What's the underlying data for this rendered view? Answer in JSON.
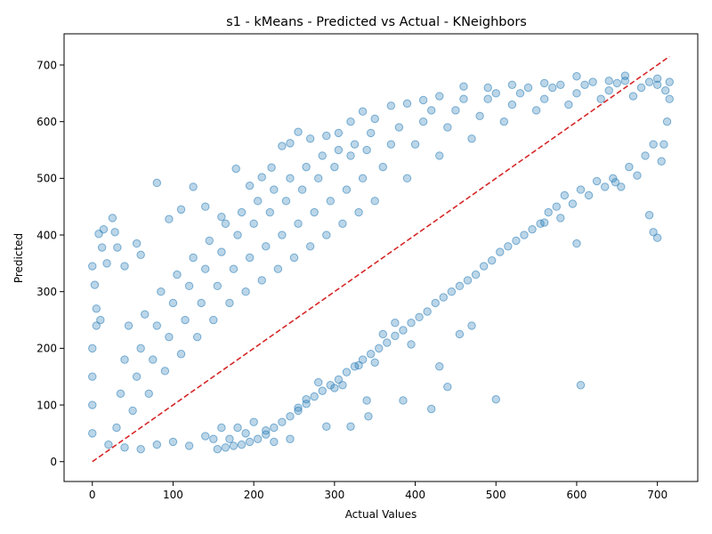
{
  "chart_data": {
    "type": "scatter",
    "title": "s1 - kMeans - Predicted vs Actual - KNeighbors",
    "xlabel": "Actual Values",
    "ylabel": "Predicted",
    "xlim": [
      -35,
      750
    ],
    "ylim": [
      -35,
      755
    ],
    "xticks": [
      0,
      100,
      200,
      300,
      400,
      500,
      600,
      700
    ],
    "yticks": [
      0,
      100,
      200,
      300,
      400,
      500,
      600,
      700
    ],
    "grid": false,
    "legend": "none",
    "point_color": "#1f77b4",
    "point_alpha": 0.3,
    "reference_line": {
      "style": "dashed",
      "color": "#d62728",
      "x": [
        0,
        715
      ],
      "y": [
        0,
        715
      ]
    },
    "series": [
      {
        "points": [
          [
            0,
            345
          ],
          [
            3,
            312
          ],
          [
            5,
            270
          ],
          [
            8,
            402
          ],
          [
            12,
            378
          ],
          [
            14,
            410
          ],
          [
            18,
            350
          ],
          [
            25,
            430
          ],
          [
            28,
            405
          ],
          [
            31,
            378
          ],
          [
            40,
            345
          ],
          [
            55,
            385
          ],
          [
            60,
            365
          ],
          [
            80,
            492
          ],
          [
            95,
            428
          ],
          [
            110,
            445
          ],
          [
            125,
            485
          ],
          [
            140,
            450
          ],
          [
            160,
            432
          ],
          [
            178,
            517
          ],
          [
            195,
            487
          ],
          [
            210,
            502
          ],
          [
            222,
            519
          ],
          [
            235,
            557
          ],
          [
            245,
            562
          ],
          [
            255,
            582
          ],
          [
            270,
            570
          ],
          [
            290,
            575
          ],
          [
            305,
            580
          ],
          [
            320,
            600
          ],
          [
            335,
            618
          ],
          [
            350,
            605
          ],
          [
            370,
            628
          ],
          [
            390,
            632
          ],
          [
            410,
            638
          ],
          [
            430,
            645
          ],
          [
            460,
            662
          ],
          [
            490,
            660
          ],
          [
            520,
            665
          ],
          [
            560,
            668
          ],
          [
            600,
            680
          ],
          [
            640,
            672
          ],
          [
            660,
            681
          ],
          [
            700,
            676
          ],
          [
            715,
            670
          ],
          [
            170,
            40
          ],
          [
            180,
            60
          ],
          [
            190,
            50
          ],
          [
            200,
            70
          ],
          [
            215,
            55
          ],
          [
            225,
            35
          ],
          [
            245,
            40
          ],
          [
            255,
            95
          ],
          [
            265,
            110
          ],
          [
            280,
            140
          ],
          [
            290,
            62
          ],
          [
            300,
            130
          ],
          [
            310,
            135
          ],
          [
            320,
            62
          ],
          [
            330,
            170
          ],
          [
            340,
            108
          ],
          [
            342,
            80
          ],
          [
            350,
            175
          ],
          [
            360,
            225
          ],
          [
            375,
            245
          ],
          [
            385,
            108
          ],
          [
            395,
            207
          ],
          [
            420,
            93
          ],
          [
            430,
            168
          ],
          [
            440,
            132
          ],
          [
            455,
            225
          ],
          [
            470,
            240
          ],
          [
            500,
            110
          ],
          [
            560,
            422
          ],
          [
            580,
            430
          ],
          [
            600,
            385
          ],
          [
            605,
            135
          ],
          [
            648,
            493
          ],
          [
            690,
            435
          ],
          [
            695,
            405
          ],
          [
            700,
            395
          ],
          [
            20,
            30
          ],
          [
            40,
            25
          ],
          [
            60,
            22
          ],
          [
            80,
            30
          ],
          [
            100,
            35
          ],
          [
            120,
            28
          ],
          [
            140,
            45
          ],
          [
            150,
            40
          ],
          [
            160,
            60
          ],
          [
            0,
            50
          ],
          [
            0,
            100
          ],
          [
            0,
            150
          ],
          [
            0,
            200
          ],
          [
            5,
            240
          ],
          [
            10,
            250
          ],
          [
            30,
            60
          ],
          [
            35,
            120
          ],
          [
            40,
            180
          ],
          [
            45,
            240
          ],
          [
            50,
            90
          ],
          [
            55,
            150
          ],
          [
            60,
            200
          ],
          [
            65,
            260
          ],
          [
            70,
            120
          ],
          [
            75,
            180
          ],
          [
            80,
            240
          ],
          [
            85,
            300
          ],
          [
            90,
            160
          ],
          [
            95,
            220
          ],
          [
            100,
            280
          ],
          [
            105,
            330
          ],
          [
            110,
            190
          ],
          [
            115,
            250
          ],
          [
            120,
            310
          ],
          [
            125,
            360
          ],
          [
            130,
            220
          ],
          [
            135,
            280
          ],
          [
            140,
            340
          ],
          [
            145,
            390
          ],
          [
            150,
            250
          ],
          [
            155,
            310
          ],
          [
            160,
            370
          ],
          [
            165,
            420
          ],
          [
            170,
            280
          ],
          [
            175,
            340
          ],
          [
            180,
            400
          ],
          [
            185,
            440
          ],
          [
            190,
            300
          ],
          [
            195,
            360
          ],
          [
            200,
            420
          ],
          [
            205,
            460
          ],
          [
            210,
            320
          ],
          [
            215,
            380
          ],
          [
            220,
            440
          ],
          [
            225,
            480
          ],
          [
            230,
            340
          ],
          [
            235,
            400
          ],
          [
            240,
            460
          ],
          [
            245,
            500
          ],
          [
            250,
            360
          ],
          [
            255,
            420
          ],
          [
            260,
            480
          ],
          [
            265,
            520
          ],
          [
            270,
            380
          ],
          [
            275,
            440
          ],
          [
            280,
            500
          ],
          [
            285,
            540
          ],
          [
            290,
            400
          ],
          [
            295,
            460
          ],
          [
            300,
            520
          ],
          [
            305,
            550
          ],
          [
            310,
            420
          ],
          [
            315,
            480
          ],
          [
            320,
            540
          ],
          [
            325,
            560
          ],
          [
            330,
            440
          ],
          [
            335,
            500
          ],
          [
            340,
            550
          ],
          [
            345,
            580
          ],
          [
            350,
            460
          ],
          [
            360,
            520
          ],
          [
            370,
            560
          ],
          [
            380,
            590
          ],
          [
            390,
            500
          ],
          [
            400,
            560
          ],
          [
            410,
            600
          ],
          [
            420,
            620
          ],
          [
            430,
            540
          ],
          [
            440,
            590
          ],
          [
            450,
            620
          ],
          [
            460,
            640
          ],
          [
            470,
            570
          ],
          [
            480,
            610
          ],
          [
            490,
            640
          ],
          [
            500,
            650
          ],
          [
            510,
            600
          ],
          [
            520,
            630
          ],
          [
            530,
            650
          ],
          [
            540,
            660
          ],
          [
            550,
            620
          ],
          [
            560,
            640
          ],
          [
            570,
            660
          ],
          [
            580,
            665
          ],
          [
            590,
            630
          ],
          [
            600,
            650
          ],
          [
            610,
            665
          ],
          [
            620,
            670
          ],
          [
            630,
            640
          ],
          [
            640,
            655
          ],
          [
            650,
            668
          ],
          [
            660,
            672
          ],
          [
            670,
            645
          ],
          [
            680,
            660
          ],
          [
            690,
            670
          ],
          [
            700,
            665
          ],
          [
            710,
            655
          ],
          [
            715,
            640
          ],
          [
            712,
            600
          ],
          [
            708,
            560
          ],
          [
            705,
            530
          ],
          [
            695,
            560
          ],
          [
            685,
            540
          ],
          [
            675,
            505
          ],
          [
            665,
            520
          ],
          [
            655,
            485
          ],
          [
            645,
            500
          ],
          [
            635,
            485
          ],
          [
            625,
            495
          ],
          [
            615,
            470
          ],
          [
            605,
            480
          ],
          [
            595,
            455
          ],
          [
            585,
            470
          ],
          [
            575,
            450
          ],
          [
            565,
            440
          ],
          [
            555,
            420
          ],
          [
            545,
            410
          ],
          [
            535,
            400
          ],
          [
            525,
            390
          ],
          [
            515,
            380
          ],
          [
            505,
            370
          ],
          [
            495,
            355
          ],
          [
            485,
            345
          ],
          [
            475,
            330
          ],
          [
            465,
            320
          ],
          [
            455,
            310
          ],
          [
            445,
            300
          ],
          [
            435,
            290
          ],
          [
            425,
            280
          ],
          [
            415,
            265
          ],
          [
            405,
            255
          ],
          [
            395,
            245
          ],
          [
            385,
            232
          ],
          [
            375,
            222
          ],
          [
            365,
            210
          ],
          [
            355,
            200
          ],
          [
            345,
            190
          ],
          [
            335,
            180
          ],
          [
            325,
            168
          ],
          [
            315,
            158
          ],
          [
            305,
            145
          ],
          [
            295,
            135
          ],
          [
            285,
            125
          ],
          [
            275,
            115
          ],
          [
            265,
            102
          ],
          [
            255,
            90
          ],
          [
            245,
            80
          ],
          [
            235,
            70
          ],
          [
            225,
            60
          ],
          [
            215,
            48
          ],
          [
            205,
            40
          ],
          [
            195,
            35
          ],
          [
            185,
            30
          ],
          [
            175,
            28
          ],
          [
            165,
            25
          ],
          [
            155,
            22
          ]
        ]
      }
    ]
  }
}
